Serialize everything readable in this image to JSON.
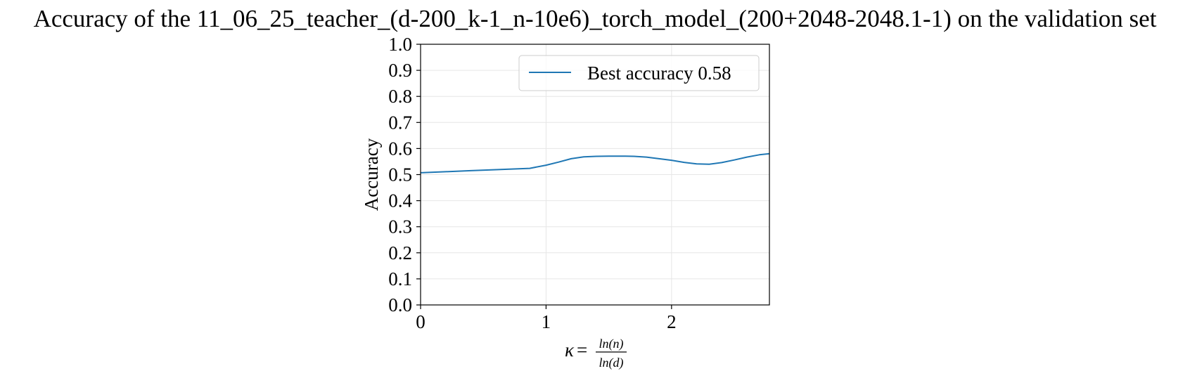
{
  "chart_data": {
    "type": "line",
    "title": "Accuracy of the 11_06_25_teacher_(d-200_k-1_n-10e6)_torch_model_(200+2048-2048.1-1) on the validation set",
    "xlabel": {
      "prefix": "κ",
      "equals": "=",
      "numerator": "ln(n)",
      "denominator": "ln(d)"
    },
    "ylabel": "Accuracy",
    "xlim": [
      0,
      2.78
    ],
    "ylim": [
      0,
      1.0
    ],
    "x_ticks": [
      0,
      1,
      2
    ],
    "x_tick_labels": [
      "0",
      "1",
      "2"
    ],
    "y_ticks": [
      0.0,
      0.1,
      0.2,
      0.3,
      0.4,
      0.5,
      0.6,
      0.7,
      0.8,
      0.9,
      1.0
    ],
    "y_tick_labels": [
      "0.0",
      "0.1",
      "0.2",
      "0.3",
      "0.4",
      "0.5",
      "0.6",
      "0.7",
      "0.8",
      "0.9",
      "1.0"
    ],
    "grid": true,
    "legend": {
      "placement": "upper-right"
    },
    "series": [
      {
        "name": "Best accuracy 0.58",
        "color": "#1f77b4",
        "x": [
          0,
          0.2,
          0.4,
          0.6,
          0.87,
          1.0,
          1.1,
          1.2,
          1.3,
          1.4,
          1.5,
          1.6,
          1.7,
          1.8,
          1.9,
          2.0,
          2.1,
          2.2,
          2.3,
          2.4,
          2.5,
          2.6,
          2.7,
          2.78
        ],
        "y": [
          0.507,
          0.511,
          0.515,
          0.519,
          0.524,
          0.536,
          0.548,
          0.561,
          0.568,
          0.57,
          0.571,
          0.571,
          0.57,
          0.567,
          0.561,
          0.555,
          0.547,
          0.541,
          0.54,
          0.546,
          0.556,
          0.567,
          0.576,
          0.58
        ]
      }
    ]
  }
}
